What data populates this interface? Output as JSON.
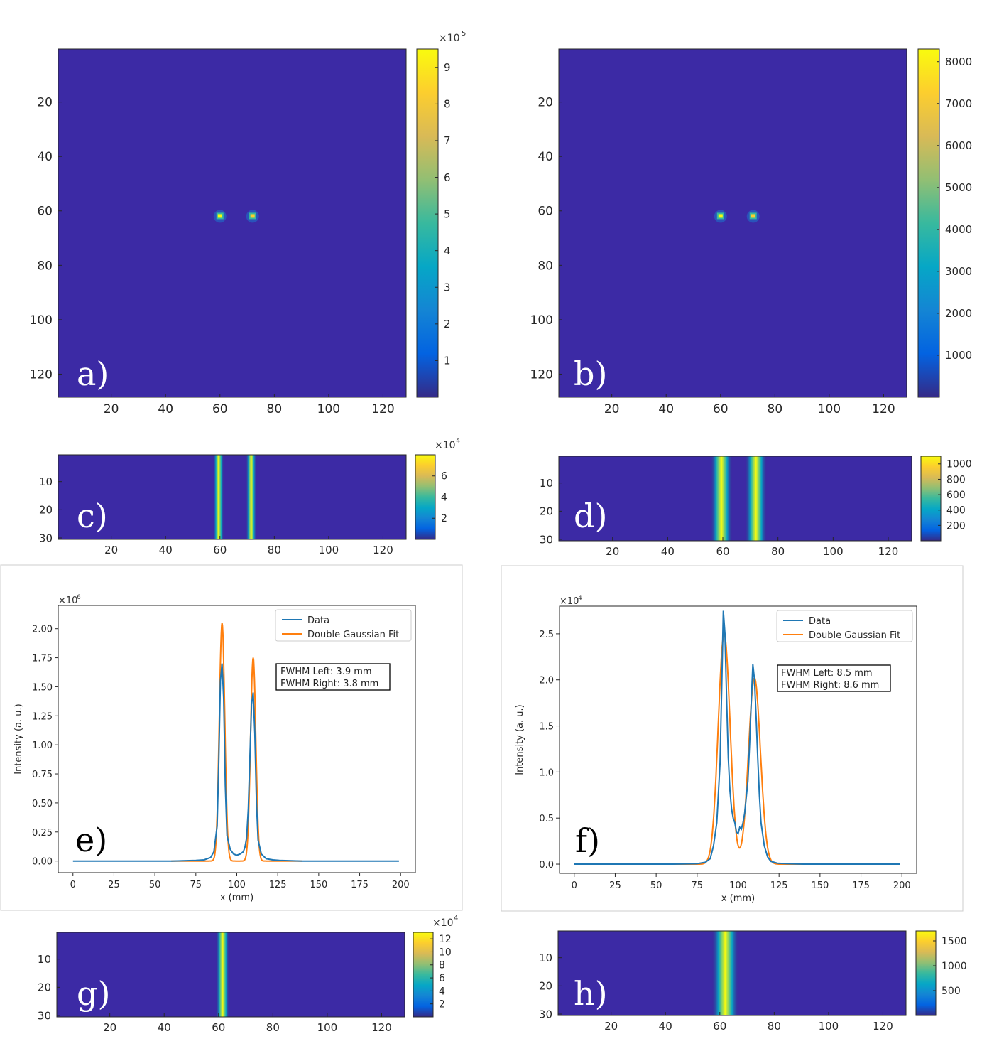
{
  "colors": {
    "background": "#3c2aa5",
    "parula": [
      "#352a87",
      "#0363e1",
      "#1485d4",
      "#06a7c6",
      "#38b99e",
      "#92bf73",
      "#d9ba56",
      "#fcce2e",
      "#f9fb0e"
    ],
    "data_line": "#1f77b4",
    "fit_line": "#ff7f0e"
  },
  "panels": {
    "a": {
      "letter": "a)",
      "exponent_label": "×10",
      "exponent": "5"
    },
    "b": {
      "letter": "b)",
      "exponent_label": "",
      "exponent": ""
    },
    "c": {
      "letter": "c)",
      "exponent_label": "×10",
      "exponent": "4"
    },
    "d": {
      "letter": "d)",
      "exponent_label": "",
      "exponent": ""
    },
    "e": {
      "letter": "e)",
      "exponent_label": "×10",
      "exponent": "6",
      "annot_line1": "FWHM Left: 3.9 mm",
      "annot_line2": "FWHM Right: 3.8 mm"
    },
    "f": {
      "letter": "f)",
      "exponent_label": "×10",
      "exponent": "4",
      "annot_line1": "FWHM Left: 8.5 mm",
      "annot_line2": "FWHM Right: 8.6 mm"
    },
    "g": {
      "letter": "g)",
      "exponent_label": "×10",
      "exponent": "4"
    },
    "h": {
      "letter": "h)",
      "exponent_label": "",
      "exponent": ""
    }
  },
  "chart_data": [
    {
      "panel": "a",
      "type": "heatmap",
      "title": "",
      "x_ticks": [
        20,
        40,
        60,
        80,
        100,
        120
      ],
      "y_ticks": [
        20,
        40,
        60,
        80,
        100,
        120
      ],
      "xlim": [
        0.5,
        128.5
      ],
      "ylim": [
        0.5,
        128.5
      ],
      "hotspots": [
        {
          "x": 60,
          "y": 62,
          "value": 950000
        },
        {
          "x": 72,
          "y": 62,
          "value": 700000
        }
      ],
      "colorbar": {
        "ticks": [
          "1",
          "2",
          "3",
          "4",
          "5",
          "6",
          "7",
          "8",
          "9"
        ],
        "range": [
          0,
          9.5
        ]
      }
    },
    {
      "panel": "b",
      "type": "heatmap",
      "title": "",
      "x_ticks": [
        20,
        40,
        60,
        80,
        100,
        120
      ],
      "y_ticks": [
        20,
        40,
        60,
        80,
        100,
        120
      ],
      "xlim": [
        0.5,
        128.5
      ],
      "ylim": [
        0.5,
        128.5
      ],
      "hotspots": [
        {
          "x": 60,
          "y": 62,
          "value": 8300
        },
        {
          "x": 72,
          "y": 62,
          "value": 6500
        }
      ],
      "colorbar": {
        "ticks": [
          "1000",
          "2000",
          "3000",
          "4000",
          "5000",
          "6000",
          "7000",
          "8000"
        ],
        "range": [
          0,
          8300
        ]
      }
    },
    {
      "panel": "c",
      "type": "heatmap",
      "title": "",
      "x_ticks": [
        20,
        40,
        60,
        80,
        100,
        120
      ],
      "y_ticks": [
        10,
        20,
        30
      ],
      "xlim": [
        0.5,
        128.5
      ],
      "ylim": [
        0.5,
        30.5
      ],
      "stripes": [
        {
          "x": 59.5,
          "width": 2
        },
        {
          "x": 71.5,
          "width": 2
        }
      ],
      "colorbar": {
        "ticks": [
          "2",
          "4",
          "6"
        ],
        "range": [
          0,
          8
        ]
      }
    },
    {
      "panel": "d",
      "type": "heatmap",
      "title": "",
      "x_ticks": [
        20,
        40,
        60,
        80,
        100,
        120
      ],
      "y_ticks": [
        10,
        20,
        30
      ],
      "xlim": [
        0.5,
        128.5
      ],
      "ylim": [
        0.5,
        30.5
      ],
      "stripes": [
        {
          "x": 59.5,
          "width": 4
        },
        {
          "x": 72,
          "width": 4
        }
      ],
      "colorbar": {
        "ticks": [
          "200",
          "400",
          "600",
          "800",
          "1000"
        ],
        "range": [
          0,
          1100
        ]
      }
    },
    {
      "panel": "e",
      "type": "line",
      "title": "",
      "xlabel": "x (mm)",
      "ylabel": "Intensity (a. u.)",
      "xlim": [
        -9,
        209
      ],
      "ylim": [
        -0.1,
        2.2
      ],
      "x_ticks": [
        0,
        25,
        50,
        75,
        100,
        125,
        150,
        175,
        200
      ],
      "y_ticks": [
        "0.00",
        "0.25",
        "0.50",
        "0.75",
        "1.00",
        "1.25",
        "1.50",
        "1.75",
        "2.00"
      ],
      "legend_position": "top-right",
      "series": [
        {
          "name": "Data",
          "x": [
            0,
            60,
            75,
            80,
            84,
            86,
            88,
            89,
            90,
            91,
            92,
            93,
            94,
            96,
            98,
            100,
            102,
            104,
            105,
            106,
            107,
            108,
            109,
            110,
            111,
            112,
            113,
            115,
            118,
            122,
            126,
            140,
            199
          ],
          "y": [
            0,
            0,
            0.005,
            0.01,
            0.03,
            0.08,
            0.3,
            0.85,
            1.55,
            1.7,
            1.4,
            0.65,
            0.22,
            0.1,
            0.06,
            0.05,
            0.06,
            0.08,
            0.12,
            0.2,
            0.45,
            0.9,
            1.35,
            1.45,
            1.1,
            0.5,
            0.18,
            0.06,
            0.02,
            0.01,
            0.005,
            0,
            0
          ]
        },
        {
          "name": "Double Gaussian Fit",
          "x_range": [
            60,
            140
          ],
          "peaks": [
            {
              "center": 91,
              "amplitude": 2.05,
              "fwhm": 3.9
            },
            {
              "center": 110,
              "amplitude": 1.75,
              "fwhm": 3.8
            }
          ]
        }
      ]
    },
    {
      "panel": "f",
      "type": "line",
      "title": "",
      "xlabel": "x (mm)",
      "ylabel": "Intensity (a. u.)",
      "xlim": [
        -9,
        209
      ],
      "ylim": [
        -0.1,
        2.8
      ],
      "x_ticks": [
        0,
        25,
        50,
        75,
        100,
        125,
        150,
        175,
        200
      ],
      "y_ticks": [
        "0.0",
        "0.5",
        "1.0",
        "1.5",
        "2.0",
        "2.5"
      ],
      "legend_position": "top-right",
      "series": [
        {
          "name": "Data",
          "x": [
            0,
            60,
            75,
            80,
            83,
            85,
            87,
            89,
            90,
            91,
            92,
            93,
            94,
            95,
            96,
            97,
            98,
            99,
            100,
            101,
            102,
            103,
            104,
            106,
            107,
            108,
            109,
            110,
            111,
            112,
            113,
            114,
            116,
            118,
            120,
            124,
            130,
            140,
            199
          ],
          "y": [
            0,
            0,
            0.005,
            0.02,
            0.06,
            0.2,
            0.45,
            1.1,
            1.9,
            2.75,
            2.5,
            1.8,
            1.15,
            0.8,
            0.6,
            0.5,
            0.45,
            0.35,
            0.33,
            0.4,
            0.38,
            0.45,
            0.55,
            0.9,
            1.3,
            1.75,
            2.17,
            2.0,
            1.6,
            1.15,
            0.75,
            0.45,
            0.2,
            0.08,
            0.03,
            0.01,
            0.005,
            0,
            0
          ]
        },
        {
          "name": "Double Gaussian Fit",
          "x_range": [
            60,
            140
          ],
          "peaks": [
            {
              "center": 91.5,
              "amplitude": 2.5,
              "fwhm": 8.5
            },
            {
              "center": 110,
              "amplitude": 2.02,
              "fwhm": 8.6
            }
          ]
        }
      ]
    },
    {
      "panel": "g",
      "type": "heatmap",
      "title": "",
      "x_ticks": [
        20,
        40,
        60,
        80,
        100,
        120
      ],
      "y_ticks": [
        10,
        20,
        30
      ],
      "xlim": [
        0.5,
        128.5
      ],
      "ylim": [
        0.5,
        30.5
      ],
      "stripes": [
        {
          "x": 61.5,
          "width": 2.5
        }
      ],
      "colorbar": {
        "ticks": [
          "2",
          "4",
          "6",
          "8",
          "10",
          "12"
        ],
        "range": [
          0,
          13
        ]
      }
    },
    {
      "panel": "h",
      "type": "heatmap",
      "title": "",
      "x_ticks": [
        20,
        40,
        60,
        80,
        100,
        120
      ],
      "y_ticks": [
        10,
        20,
        30
      ],
      "xlim": [
        0.5,
        128.5
      ],
      "ylim": [
        0.5,
        30.5
      ],
      "stripes": [
        {
          "x": 62,
          "width": 5
        }
      ],
      "colorbar": {
        "ticks": [
          "500",
          "1000",
          "1500"
        ],
        "range": [
          0,
          1700
        ]
      }
    }
  ]
}
